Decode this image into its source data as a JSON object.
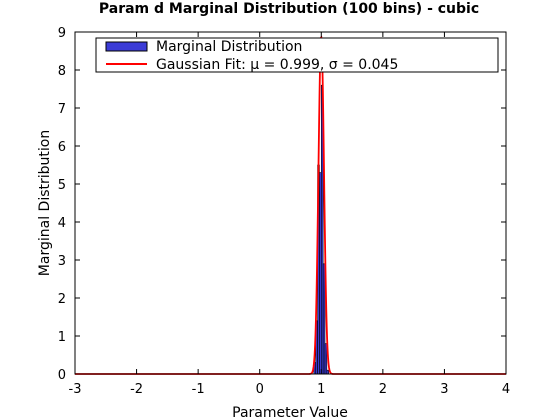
{
  "chart_data": {
    "type": "bar",
    "title": "Param d Marginal Distribution (100 bins) - cubic",
    "xlabel": "Parameter Value",
    "ylabel": "Marginal Distribution",
    "xlim": [
      -3,
      4
    ],
    "ylim": [
      0,
      9
    ],
    "xticks": [
      -3,
      -2,
      -1,
      0,
      1,
      2,
      3,
      4
    ],
    "yticks": [
      0,
      1,
      2,
      3,
      4,
      5,
      6,
      7,
      8,
      9
    ],
    "grid": false,
    "legend_position": "top",
    "histogram": {
      "name": "Marginal Distribution",
      "color": "#3b3bd6",
      "edge_color": "#000000",
      "bin_edges": [
        0.88,
        0.91,
        0.94,
        0.97,
        1.0,
        1.03,
        1.06,
        1.09,
        1.12
      ],
      "values": [
        0.3,
        1.4,
        5.5,
        5.3,
        7.6,
        2.9,
        0.8,
        0.1
      ]
    },
    "fit": {
      "name": "Gaussian Fit: μ = 0.999, σ  = 0.045",
      "type": "gaussian",
      "mu": 0.999,
      "sigma": 0.045,
      "color": "#ff0000"
    }
  }
}
